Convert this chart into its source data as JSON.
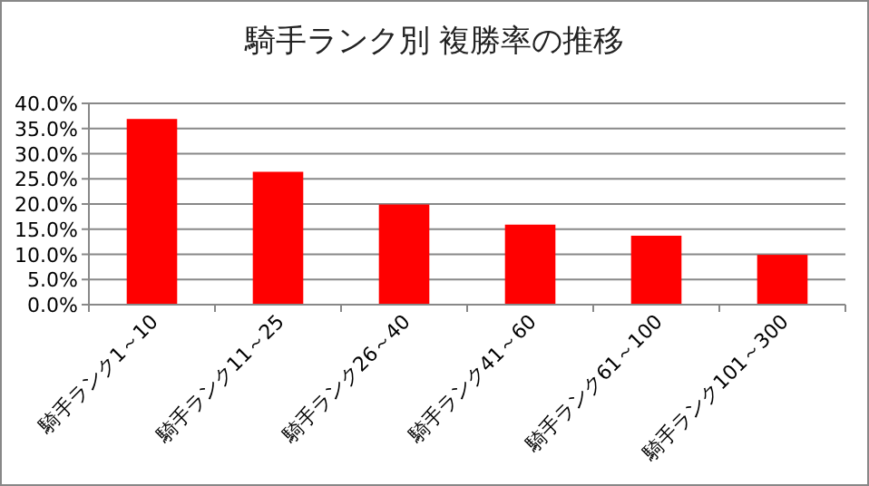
{
  "chart_data": {
    "type": "bar",
    "title": "騎手ランク別 複勝率の推移",
    "categories": [
      "騎手ランク1～10",
      "騎手ランク11～25",
      "騎手ランク26～40",
      "騎手ランク41～60",
      "騎手ランク61～100",
      "騎手ランク101～300"
    ],
    "values": [
      36.9,
      26.4,
      19.9,
      15.9,
      13.7,
      9.9
    ],
    "color": "#ff0000",
    "ylim": [
      0,
      40
    ],
    "yticks": [
      {
        "value": 0,
        "label": "0.0%"
      },
      {
        "value": 5,
        "label": "5.0%"
      },
      {
        "value": 10,
        "label": "10.0%"
      },
      {
        "value": 15,
        "label": "15.0%"
      },
      {
        "value": 20,
        "label": "20.0%"
      },
      {
        "value": 25,
        "label": "25.0%"
      },
      {
        "value": 30,
        "label": "30.0%"
      },
      {
        "value": 35,
        "label": "35.0%"
      },
      {
        "value": 40,
        "label": "40.0%"
      }
    ],
    "grid": "y"
  }
}
